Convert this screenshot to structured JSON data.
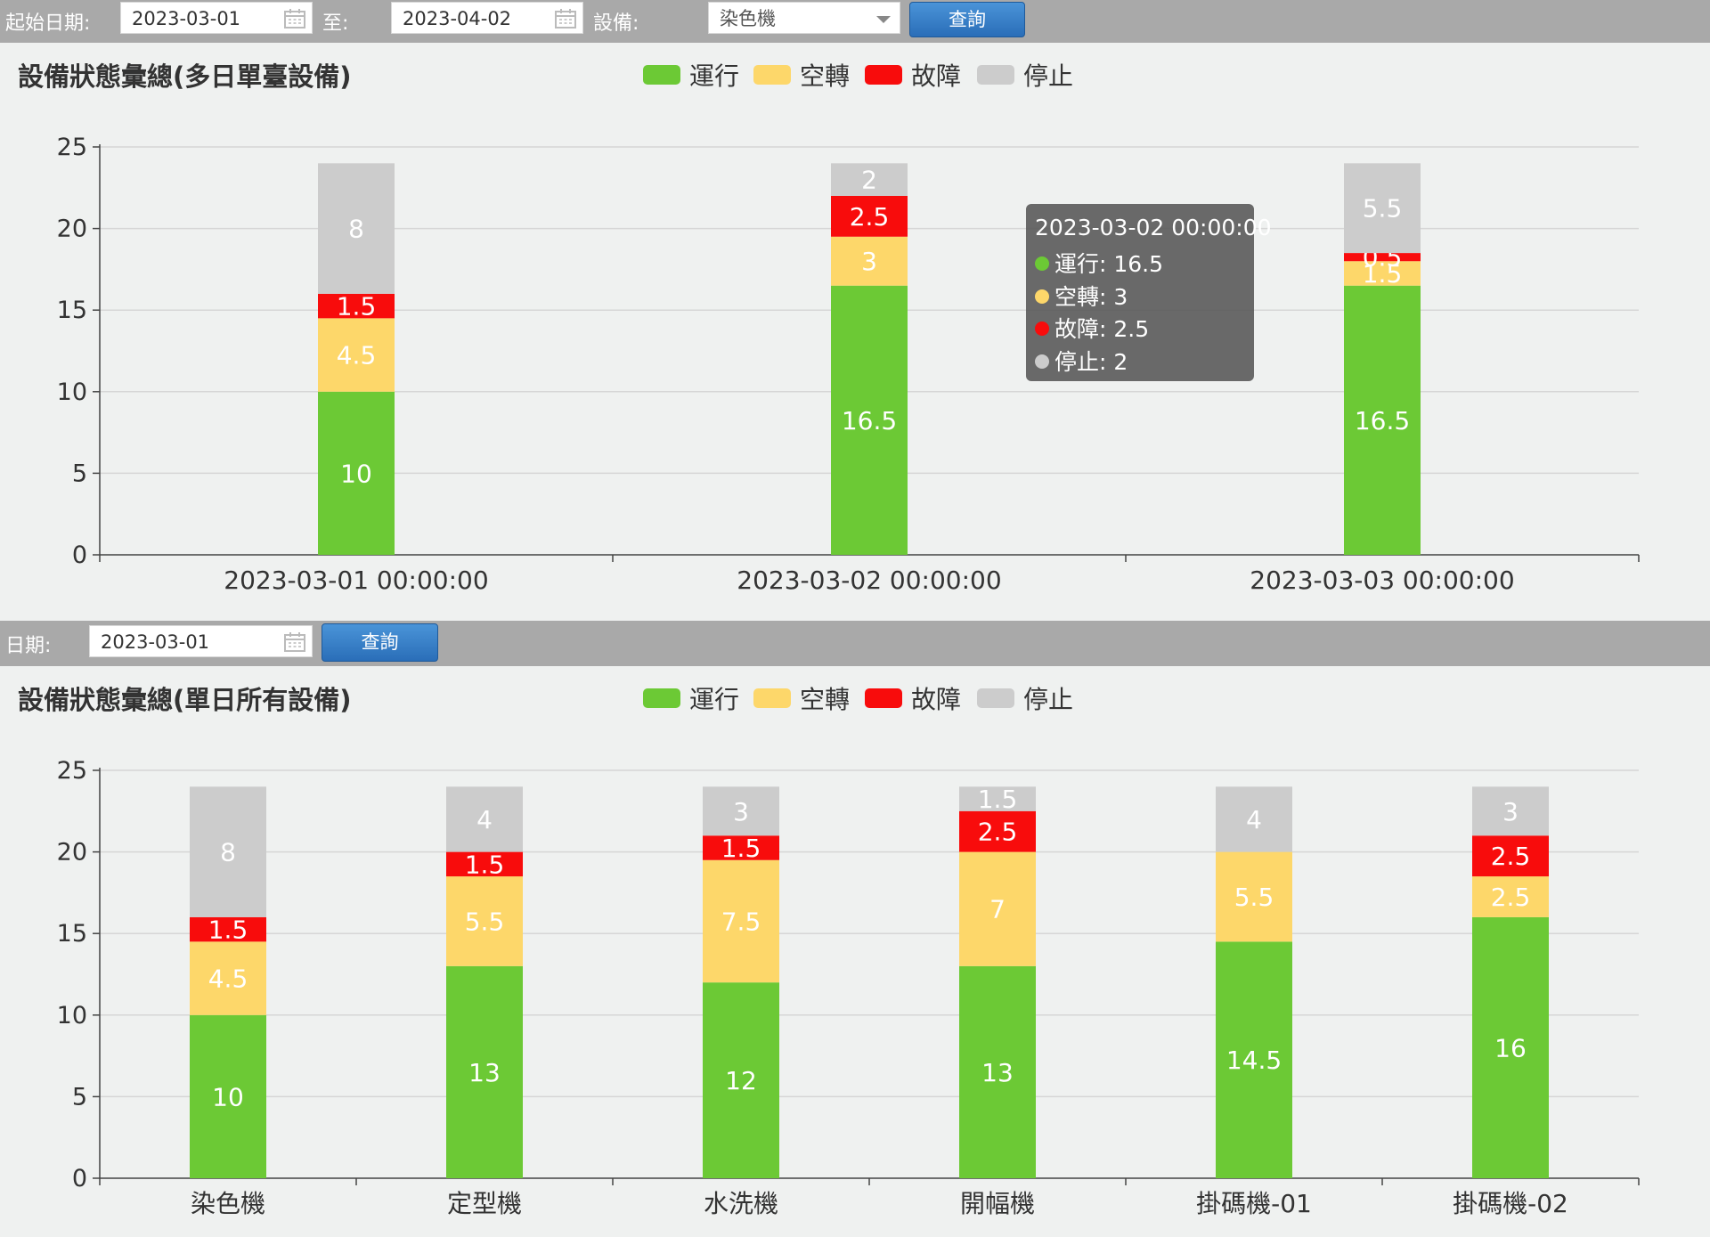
{
  "toolbar1": {
    "start_label": "起始日期:",
    "start_value": "2023-03-01",
    "to_label": "至:",
    "end_value": "2023-04-02",
    "device_label": "設備:",
    "device_value": "染色機",
    "query_label": "查詢"
  },
  "toolbar2": {
    "date_label": "日期:",
    "date_value": "2023-03-01",
    "query_label": "查詢"
  },
  "legend": {
    "items": [
      {
        "label": "運行",
        "color": "#6cc935"
      },
      {
        "label": "空轉",
        "color": "#fdd76a"
      },
      {
        "label": "故障",
        "color": "#f80c0c"
      },
      {
        "label": "停止",
        "color": "#cccccc"
      }
    ]
  },
  "tooltip": {
    "title": "2023-03-02 00:00:00",
    "rows": [
      "運行: 16.5",
      "空轉: 3",
      "故障: 2.5",
      "停止: 2"
    ]
  },
  "chart_data": [
    {
      "type": "bar",
      "stacked": true,
      "title": "設備狀態彙總(多日單臺設備)",
      "categories": [
        "2023-03-01 00:00:00",
        "2023-03-02 00:00:00",
        "2023-03-03 00:00:00"
      ],
      "series": [
        {
          "name": "運行",
          "color": "#6cc935",
          "values": [
            10,
            16.5,
            16.5
          ]
        },
        {
          "name": "空轉",
          "color": "#fdd76a",
          "values": [
            4.5,
            3,
            1.5
          ]
        },
        {
          "name": "故障",
          "color": "#f80c0c",
          "values": [
            1.5,
            2.5,
            0.5
          ]
        },
        {
          "name": "停止",
          "color": "#cccccc",
          "values": [
            8,
            2,
            5.5
          ]
        }
      ],
      "ylim": [
        0,
        25
      ],
      "yticks": [
        0,
        5,
        10,
        15,
        20,
        25
      ],
      "grid": true,
      "legend": "top-center"
    },
    {
      "type": "bar",
      "stacked": true,
      "title": "設備狀態彙總(單日所有設備)",
      "categories": [
        "染色機",
        "定型機",
        "水洗機",
        "開幅機",
        "掛碼機-01",
        "掛碼機-02"
      ],
      "series": [
        {
          "name": "運行",
          "color": "#6cc935",
          "values": [
            10,
            13,
            12,
            13,
            14.5,
            16
          ]
        },
        {
          "name": "空轉",
          "color": "#fdd76a",
          "values": [
            4.5,
            5.5,
            7.5,
            7,
            5.5,
            2.5
          ]
        },
        {
          "name": "故障",
          "color": "#f80c0c",
          "values": [
            1.5,
            1.5,
            1.5,
            2.5,
            0,
            2.5
          ]
        },
        {
          "name": "停止",
          "color": "#cccccc",
          "values": [
            8,
            4,
            3,
            1.5,
            4,
            3
          ]
        }
      ],
      "ylim": [
        0,
        25
      ],
      "yticks": [
        0,
        5,
        10,
        15,
        20,
        25
      ],
      "grid": true,
      "legend": "top-center"
    }
  ]
}
